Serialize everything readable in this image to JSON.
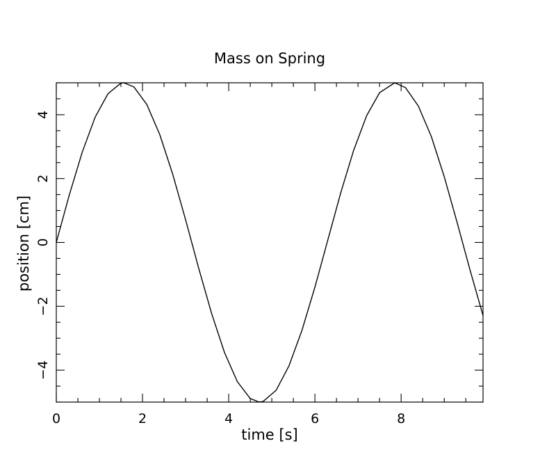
{
  "chart_data": {
    "type": "line",
    "title": "Mass on Spring",
    "xlabel": "time [s]",
    "ylabel": "position [cm]",
    "xlim": [
      0,
      9.9
    ],
    "ylim": [
      -5,
      5
    ],
    "grid": false,
    "x_major_ticks": [
      0,
      2,
      4,
      6,
      8
    ],
    "x_tick_labels": [
      "0",
      "2",
      "4",
      "6",
      "8"
    ],
    "y_major_ticks": [
      -4,
      -2,
      0,
      2,
      4
    ],
    "y_tick_labels": [
      "−4",
      "−2",
      "0",
      "2",
      "4"
    ],
    "series": [
      {
        "x": [
          0.0,
          0.3,
          0.6,
          0.9,
          1.2,
          1.5,
          1.57,
          1.8,
          2.1,
          2.4,
          2.7,
          3.0,
          3.3,
          3.6,
          3.9,
          4.2,
          4.5,
          4.71,
          4.8,
          5.1,
          5.4,
          5.7,
          6.0,
          6.3,
          6.6,
          6.9,
          7.2,
          7.5,
          7.85,
          8.1,
          8.4,
          8.7,
          9.0,
          9.3,
          9.6,
          9.9
        ],
        "y": [
          0.0,
          1.48,
          2.82,
          3.92,
          4.66,
          4.99,
          5.0,
          4.87,
          4.32,
          3.38,
          2.14,
          0.71,
          -0.79,
          -2.21,
          -3.44,
          -4.36,
          -4.89,
          -5.0,
          -4.98,
          -4.63,
          -3.86,
          -2.75,
          -1.4,
          0.08,
          1.56,
          2.89,
          3.97,
          4.69,
          5.0,
          4.85,
          4.27,
          3.32,
          2.06,
          0.62,
          -0.87,
          -2.29
        ]
      }
    ]
  }
}
